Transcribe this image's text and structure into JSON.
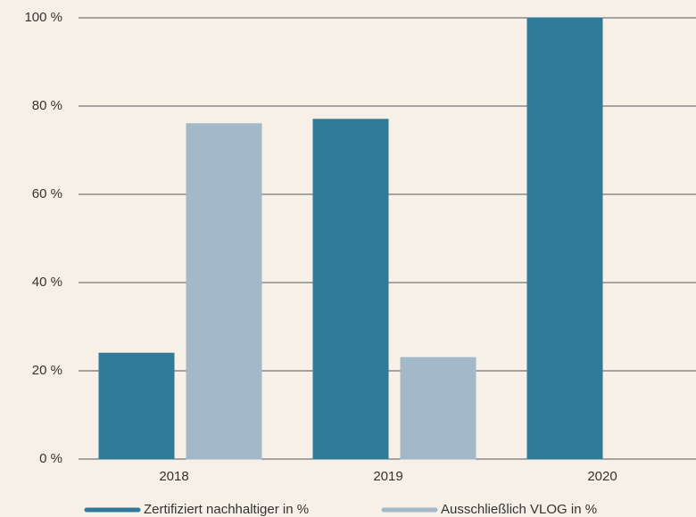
{
  "chart_data": {
    "type": "bar",
    "categories": [
      "2018",
      "2019",
      "2020"
    ],
    "series": [
      {
        "name": "Zertifiziert nachhaltiger in %",
        "color": "#2e7a98",
        "values": [
          24,
          77,
          100
        ]
      },
      {
        "name": "Ausschließlich VLOG in %",
        "color": "#a3b8c8",
        "values": [
          76,
          23,
          0
        ]
      }
    ],
    "ylim": [
      0,
      100
    ],
    "yticks": [
      {
        "value": 0,
        "label": "0 %"
      },
      {
        "value": 20,
        "label": "20 %"
      },
      {
        "value": 40,
        "label": "40 %"
      },
      {
        "value": 60,
        "label": "60 %"
      },
      {
        "value": 80,
        "label": "80 %"
      },
      {
        "value": 100,
        "label": "100 %"
      }
    ],
    "grid": true
  }
}
